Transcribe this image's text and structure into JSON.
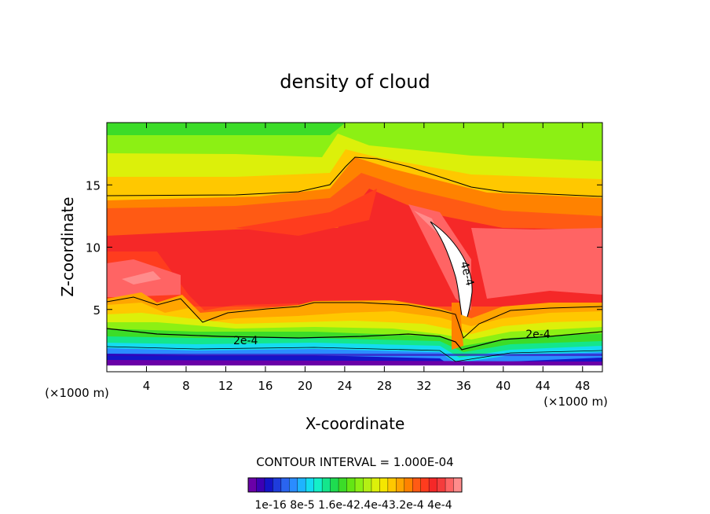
{
  "chart_data": {
    "type": "heatmap",
    "title": "density of cloud",
    "xlabel": "X-coordinate",
    "ylabel": "Z-coordinate",
    "x_unit_left": "(×1000 m)",
    "x_unit_right": "(×1000 m)",
    "xlim": [
      0,
      50
    ],
    "ylim": [
      0,
      20
    ],
    "x_ticks": [
      4,
      8,
      12,
      16,
      20,
      24,
      28,
      32,
      36,
      40,
      44,
      48
    ],
    "y_ticks": [
      5,
      10,
      15
    ],
    "contour_interval_text": "CONTOUR INTERVAL = 1.000E-04",
    "contour_labels": [
      {
        "text": "2e-4",
        "x": 14.0,
        "z": 2.2
      },
      {
        "text": "2e-4",
        "x": 43.5,
        "z": 2.7
      },
      {
        "text": "4e-4",
        "x": 36.0,
        "z": 7.8
      }
    ],
    "colorbar": {
      "labels": [
        "1e-16",
        "8e-5",
        "1.6e-4",
        "2.4e-4",
        "3.2e-4",
        "4e-4"
      ],
      "label_text": "1e-16 8e-5 1.6e-42.4e-43.2e-4 4e-4",
      "colors": [
        "#6a00a8",
        "#3d00b4",
        "#1414c8",
        "#1e3cdc",
        "#2a64f0",
        "#2a8cff",
        "#1eb4ff",
        "#14dcf0",
        "#14f0c8",
        "#14e68c",
        "#1edc50",
        "#3cdc28",
        "#64e614",
        "#8cf014",
        "#b4f014",
        "#dcf00a",
        "#f5e600",
        "#ffc800",
        "#ffa500",
        "#ff8200",
        "#ff5a14",
        "#ff3c1e",
        "#f52828",
        "#f53c3c",
        "#ff6464",
        "#ff8c8c"
      ]
    }
  }
}
